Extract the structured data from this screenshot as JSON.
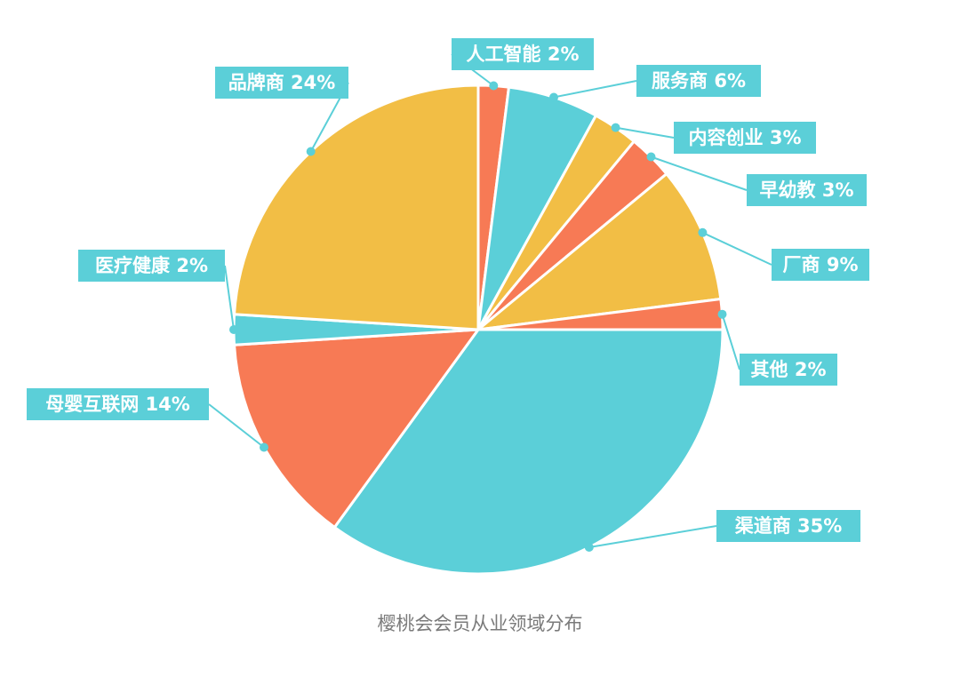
{
  "caption": "樱桃会会员从业领域分布",
  "colors": {
    "teal": "#5BCFD8",
    "orange": "#F77A55",
    "yellow": "#F2BE45",
    "label_bg": "#5BCFD8",
    "slice_border": "#ffffff"
  },
  "chart_data": {
    "type": "pie",
    "start": "top, clockwise",
    "slices": [
      {
        "label": "人工智能 2%",
        "name": "人工智能",
        "value": 2,
        "color": "#F77A55"
      },
      {
        "label": "服务商 6%",
        "name": "服务商",
        "value": 6,
        "color": "#5BCFD8"
      },
      {
        "label": "内容创业 3%",
        "name": "内容创业",
        "value": 3,
        "color": "#F2BE45"
      },
      {
        "label": "早幼教 3%",
        "name": "早幼教",
        "value": 3,
        "color": "#F77A55"
      },
      {
        "label": "厂商 9%",
        "name": "厂商",
        "value": 9,
        "color": "#F2BE45"
      },
      {
        "label": "其他 2%",
        "name": "其他",
        "value": 2,
        "color": "#F77A55"
      },
      {
        "label": "渠道商 35%",
        "name": "渠道商",
        "value": 35,
        "color": "#5BCFD8"
      },
      {
        "label": "母婴互联网 14%",
        "name": "母婴互联网",
        "value": 14,
        "color": "#F77A55"
      },
      {
        "label": "医疗健康 2%",
        "name": "医疗健康",
        "value": 2,
        "color": "#5BCFD8"
      },
      {
        "label": "品牌商 24%",
        "name": "品牌商",
        "value": 24,
        "color": "#F2BE45"
      }
    ]
  }
}
